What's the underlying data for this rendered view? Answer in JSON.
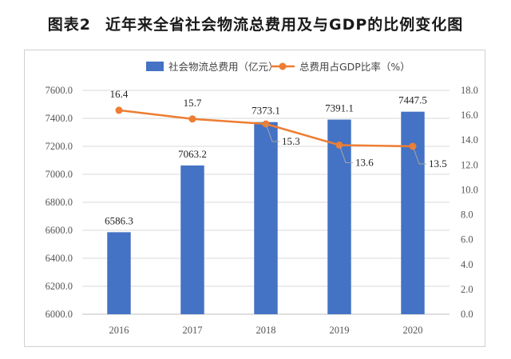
{
  "figure": {
    "number": "图表2",
    "title": "近年来全省社会物流总费用及与GDP的比例变化图"
  },
  "colors": {
    "bar": "#4472C4",
    "line": "#ED7D31",
    "grid": "#d9d9d9"
  },
  "chart_data": {
    "type": "bar",
    "categories": [
      "2016",
      "2017",
      "2018",
      "2019",
      "2020"
    ],
    "series": [
      {
        "name": "社会物流总费用（亿元）",
        "type": "bar",
        "axis": "left",
        "values": [
          6586.3,
          7063.2,
          7373.1,
          7391.1,
          7447.5
        ],
        "labels": [
          "6586.3",
          "7063.2",
          "7373.1",
          "7391.1",
          "7447.5"
        ]
      },
      {
        "name": "总费用占GDP比率（%）",
        "type": "line",
        "axis": "right",
        "values": [
          16.4,
          15.7,
          15.3,
          13.6,
          13.5
        ],
        "labels": [
          "16.4",
          "15.7",
          "15.3",
          "13.6",
          "13.5"
        ]
      }
    ],
    "y_left": {
      "lim": [
        6000,
        7600
      ],
      "ticks": [
        "6000.0",
        "6200.0",
        "6400.0",
        "6600.0",
        "6800.0",
        "7000.0",
        "7200.0",
        "7400.0",
        "7600.0"
      ]
    },
    "y_right": {
      "lim": [
        0,
        18
      ],
      "ticks": [
        "0.0",
        "2.0",
        "4.0",
        "6.0",
        "8.0",
        "10.0",
        "12.0",
        "14.0",
        "16.0",
        "18.0"
      ]
    },
    "grid": true,
    "legend": "top-center"
  }
}
